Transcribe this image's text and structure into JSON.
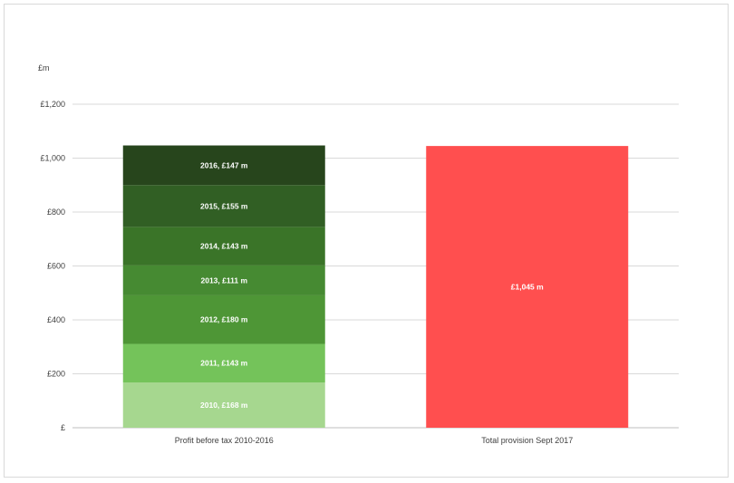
{
  "chart_data": {
    "type": "bar",
    "stacked": true,
    "ylabel": "£m",
    "ylim": [
      0,
      1200
    ],
    "yticks": [
      {
        "value": 0,
        "label": "£"
      },
      {
        "value": 200,
        "label": "£200"
      },
      {
        "value": 400,
        "label": "£400"
      },
      {
        "value": 600,
        "label": "£600"
      },
      {
        "value": 800,
        "label": "£800"
      },
      {
        "value": 1000,
        "label": "£1,000"
      },
      {
        "value": 1200,
        "label": "£1,200"
      }
    ],
    "grid": true,
    "categories": [
      "Profit before tax 2010-2016",
      "Total provision Sept 2017"
    ],
    "stacks": [
      {
        "category": "Profit before tax 2010-2016",
        "segments": [
          {
            "value": 168,
            "label": "2010,  £168 m",
            "color": "#a6d78f"
          },
          {
            "value": 143,
            "label": "2011,  £143 m",
            "color": "#74c35a"
          },
          {
            "value": 180,
            "label": "2012,  £180 m",
            "color": "#4e9636"
          },
          {
            "value": 111,
            "label": "2013,  £111 m",
            "color": "#468a32"
          },
          {
            "value": 143,
            "label": "2014,  £143 m",
            "color": "#3a7428"
          },
          {
            "value": 155,
            "label": "2015,  £155 m",
            "color": "#315f24"
          },
          {
            "value": 147,
            "label": "2016,  £147 m",
            "color": "#27451c"
          }
        ]
      },
      {
        "category": "Total provision Sept 2017",
        "segments": [
          {
            "value": 1045,
            "label": "£1,045 m",
            "color": "#ff4f4f"
          }
        ]
      }
    ]
  }
}
